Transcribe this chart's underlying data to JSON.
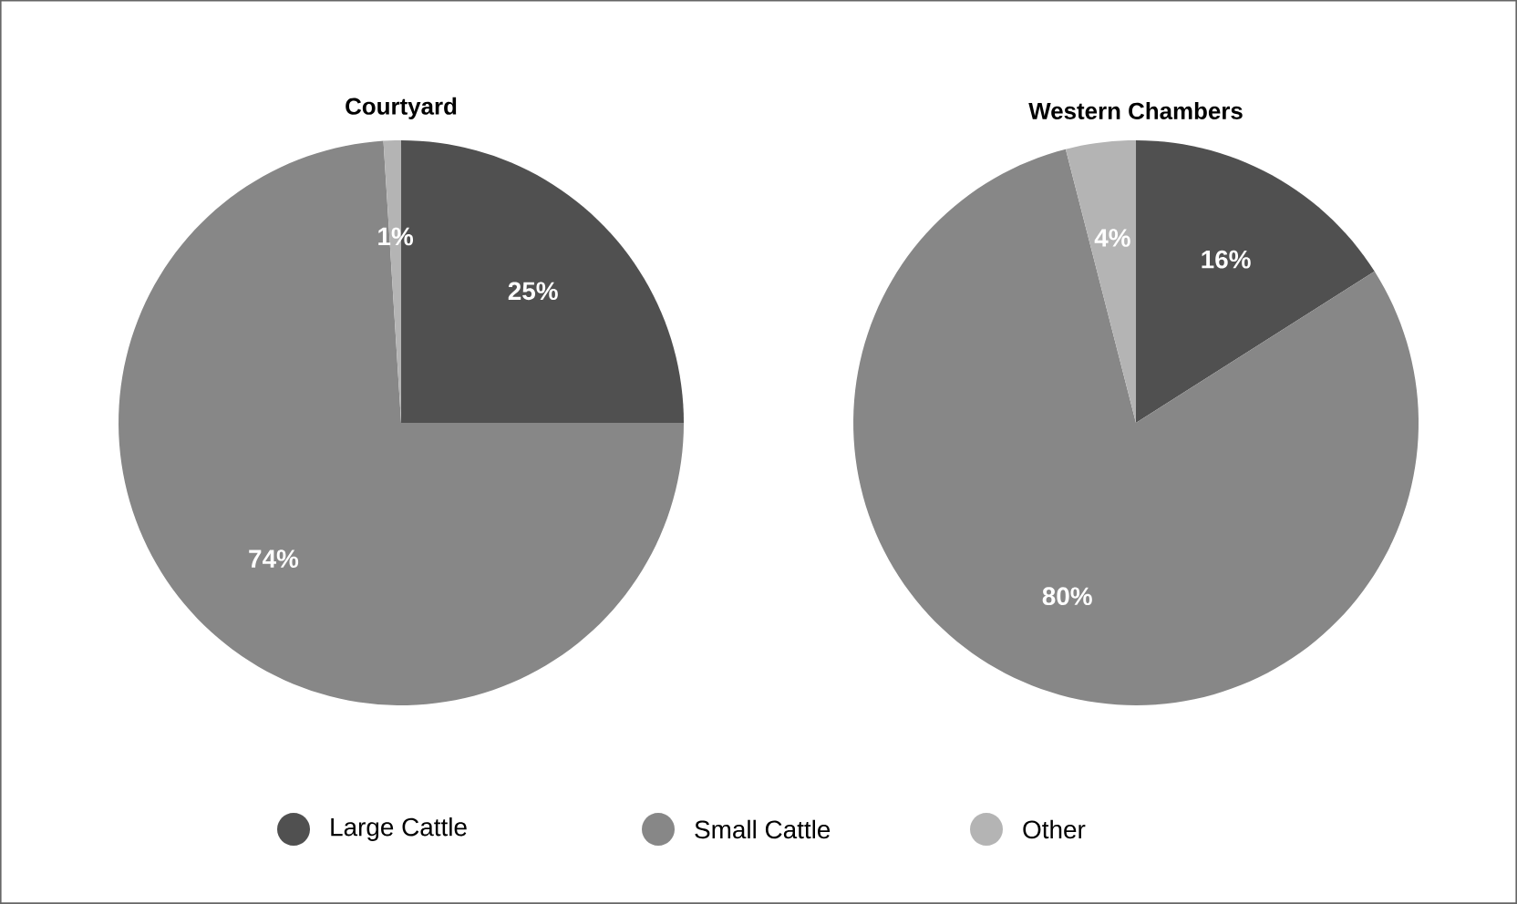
{
  "chart_data": [
    {
      "type": "pie",
      "title": "Courtyard",
      "categories": [
        "Large Cattle",
        "Small Cattle",
        "Other"
      ],
      "values": [
        25,
        74,
        1
      ],
      "value_labels": [
        "25%",
        "74%",
        "1%"
      ],
      "colors": [
        "#505050",
        "#878787",
        "#b4b4b4"
      ],
      "legend": "bottom"
    },
    {
      "type": "pie",
      "title": "Western Chambers",
      "categories": [
        null,
        null,
        null
      ],
      "values": [
        16,
        80,
        4
      ],
      "value_labels": [
        "16%",
        "80%",
        "4%"
      ],
      "colors": [
        "#505050",
        "#878787",
        "#b4b4b4"
      ]
    }
  ]
}
